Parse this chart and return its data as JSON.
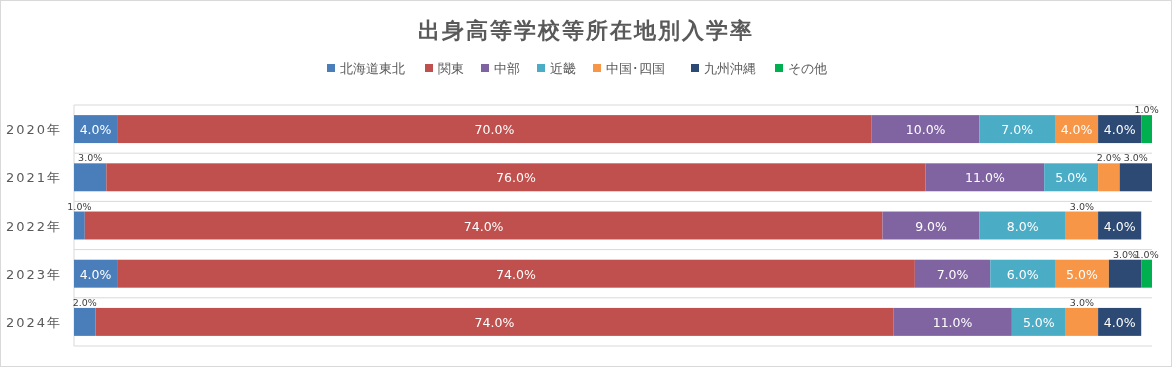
{
  "chart_data": {
    "type": "bar",
    "orientation": "horizontal",
    "stacked": true,
    "title": "出身高等学校等所在地別入学率",
    "categories": [
      "2020年",
      "2021年",
      "2022年",
      "2023年",
      "2024年"
    ],
    "xlim": [
      0,
      100
    ],
    "grid": "y",
    "legend": "top",
    "tick_labels": "y",
    "series": [
      {
        "name": "北海道東北",
        "color": "#4a7ebb",
        "values": [
          4,
          3,
          1,
          4,
          2
        ],
        "value_labels": [
          "4.0%",
          "3.0%",
          "1.0%",
          "4.0%",
          "2.0%"
        ]
      },
      {
        "name": "関東",
        "color": "#c0504d",
        "values": [
          70,
          76,
          74,
          74,
          74
        ],
        "value_labels": [
          "70.0%",
          "76.0%",
          "74.0%",
          "74.0%",
          "74.0%"
        ]
      },
      {
        "name": "中部",
        "color": "#8064a2",
        "values": [
          10,
          11,
          9,
          7,
          11
        ],
        "value_labels": [
          "10.0%",
          "11.0%",
          "9.0%",
          "7.0%",
          "11.0%"
        ]
      },
      {
        "name": "近畿",
        "color": "#4bacc6",
        "values": [
          7,
          5,
          8,
          6,
          5
        ],
        "value_labels": [
          "7.0%",
          "5.0%",
          "8.0%",
          "6.0%",
          "5.0%"
        ]
      },
      {
        "name": "中国･四国",
        "color": "#f79646",
        "values": [
          4,
          2,
          3,
          5,
          3
        ],
        "value_labels": [
          "4.0%",
          "2.0%",
          "3.0%",
          "5.0%",
          "3.0%"
        ]
      },
      {
        "name": "九州沖縄",
        "color": "#2c4a74",
        "values": [
          4,
          3,
          4,
          3,
          4
        ],
        "value_labels": [
          "4.0%",
          "3.0%",
          "4.0%",
          "3.0%",
          "4.0%"
        ]
      },
      {
        "name": "その他",
        "color": "#00b050",
        "values": [
          1,
          null,
          null,
          1,
          null
        ],
        "value_labels": [
          "1.0%",
          null,
          null,
          "1.0%",
          null
        ]
      }
    ]
  }
}
